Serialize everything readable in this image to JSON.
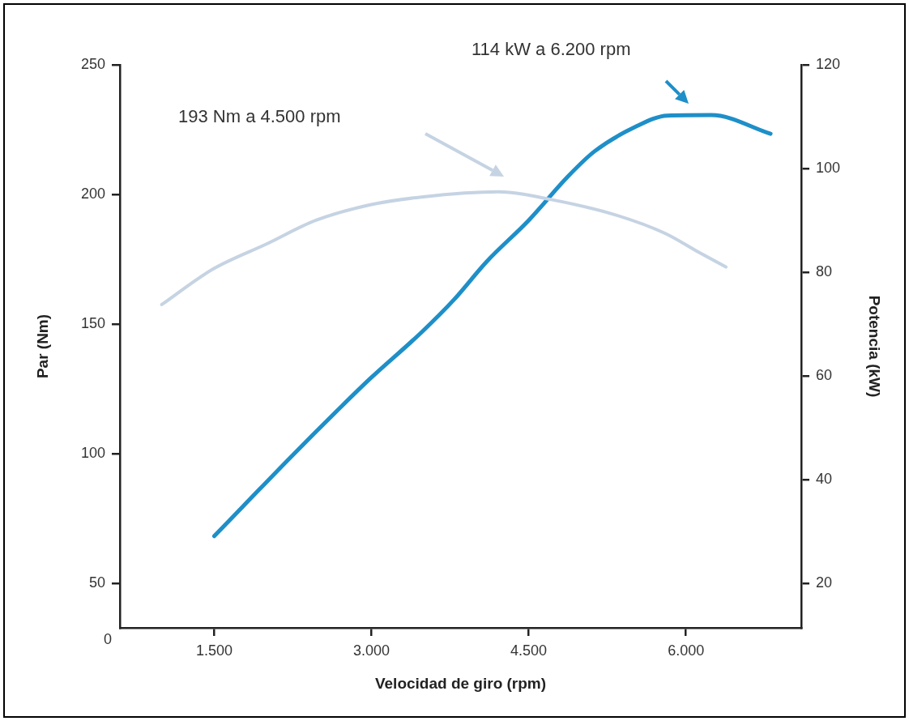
{
  "chart_data": {
    "type": "line",
    "xlabel": "Velocidad de giro (rpm)",
    "ylabel": "Par (Nm)",
    "y2label": "Potencia (kW)",
    "xlim": [
      600,
      7100
    ],
    "xticks": [
      {
        "value": 1500,
        "label": "1.500"
      },
      {
        "value": 3000,
        "label": "3.000"
      },
      {
        "value": 4500,
        "label": "4.500"
      },
      {
        "value": 6000,
        "label": "6.000"
      }
    ],
    "ylim": [
      32.8,
      250
    ],
    "yticks": [
      50,
      100,
      150,
      200,
      250
    ],
    "y2lim": [
      11.4,
      120
    ],
    "y2ticks": [
      20,
      40,
      60,
      80,
      100,
      120
    ],
    "marker": "none",
    "line_style": "solid",
    "legend": false,
    "series": [
      {
        "color": "#c5d3e3",
        "x": [
          999,
          1479,
          2006,
          2470,
          2989,
          3477,
          4213,
          4716,
          5336,
          5800,
          6110,
          6381
        ],
        "values": [
          157.5,
          171,
          181,
          190,
          196,
          199,
          201,
          198,
          192,
          185,
          178,
          172
        ]
      },
      {
        "color": "#1e8fc8",
        "axis": "y2",
        "x": [
          1500,
          1773,
          2238,
          2703,
          2989,
          3477,
          3787,
          4097,
          4500,
          4871,
          5127,
          5514,
          5823,
          6242,
          6807
        ],
        "values": [
          29.1,
          34.8,
          44.5,
          53.9,
          59.5,
          68.4,
          74.7,
          82.0,
          90.0,
          98.4,
          103.3,
          108.0,
          110.2,
          110.3,
          106.7
        ]
      }
    ],
    "annotations": [
      "193 Nm a 4.500 rpm",
      "114 kW a 6.200 rpm",
      "0"
    ]
  }
}
